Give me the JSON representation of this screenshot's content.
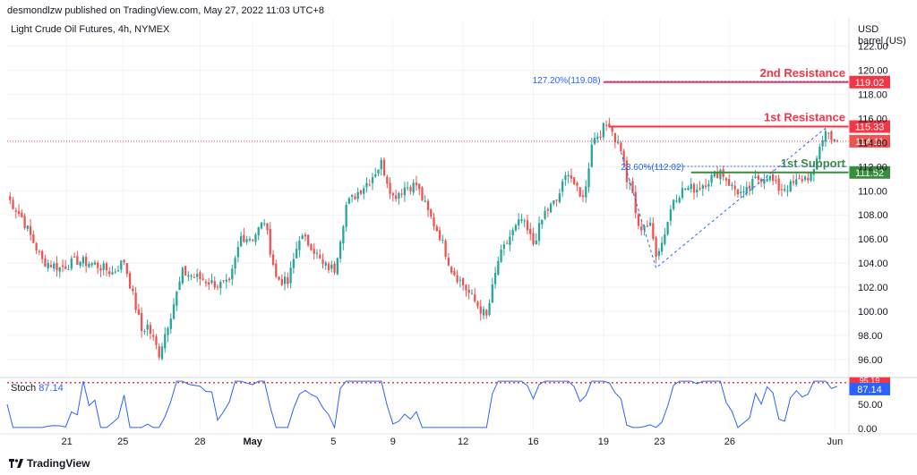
{
  "header": {
    "published": "desmondlzw published on TradingView.com, May 27, 2022 11:03 UTC+8",
    "symbol": "Light Crude Oil Futures, 4h, NYMEX",
    "currency": "USD",
    "unit": "barrel (US)"
  },
  "footer": {
    "brand": "TradingView"
  },
  "colors": {
    "up": "#26a69a",
    "down": "#ef5350",
    "resistance": "#f23645",
    "support": "#388e3c",
    "stoch": "#2962ff",
    "fib": "#2962ff"
  },
  "chart_data": [
    {
      "type": "candlestick",
      "title": "Light Crude Oil Futures, 4h, NYMEX",
      "ylabel": "USD barrel (US)",
      "ylim": [
        94.8,
        124.2
      ],
      "y_ticks": [
        "96.00",
        "98.00",
        "100.00",
        "102.00",
        "104.00",
        "106.00",
        "108.00",
        "110.00",
        "112.00",
        "114.00",
        "116.00",
        "118.00",
        "120.00",
        "122.00"
      ],
      "x_tick_labels": [
        "21",
        "25",
        "28",
        "May",
        "5",
        "9",
        "12",
        "16",
        "19",
        "23",
        "26",
        "Jun"
      ],
      "anchor_closes": [
        [
          0,
          109.5
        ],
        [
          5,
          107.8
        ],
        [
          12,
          104.2
        ],
        [
          18,
          103.6
        ],
        [
          24,
          104.2
        ],
        [
          30,
          103.9
        ],
        [
          36,
          103.2
        ],
        [
          40,
          104.2
        ],
        [
          46,
          98.4
        ],
        [
          48,
          98.8
        ],
        [
          52,
          96.5
        ],
        [
          56,
          99.8
        ],
        [
          60,
          103.2
        ],
        [
          65,
          102.8
        ],
        [
          72,
          102.2
        ],
        [
          76,
          102.2
        ],
        [
          80,
          106.2
        ],
        [
          84,
          106.1
        ],
        [
          88,
          107.5
        ],
        [
          92,
          102.8
        ],
        [
          96,
          102.3
        ],
        [
          100,
          106.2
        ],
        [
          104,
          105.5
        ],
        [
          108,
          103.8
        ],
        [
          112,
          103.5
        ],
        [
          116,
          108.8
        ],
        [
          120,
          109.9
        ],
        [
          124,
          110.9
        ],
        [
          128,
          112.3
        ],
        [
          132,
          109.5
        ],
        [
          136,
          110.3
        ],
        [
          140,
          110.5
        ],
        [
          144,
          108.2
        ],
        [
          148,
          106.3
        ],
        [
          152,
          103.5
        ],
        [
          156,
          102.2
        ],
        [
          160,
          100.8
        ],
        [
          164,
          99.5
        ],
        [
          168,
          104.2
        ],
        [
          172,
          106.2
        ],
        [
          176,
          107.6
        ],
        [
          180,
          105.6
        ],
        [
          184,
          108.2
        ],
        [
          188,
          109.2
        ],
        [
          192,
          111.7
        ],
        [
          196,
          109.4
        ],
        [
          198,
          110.2
        ],
        [
          200,
          114.1
        ],
        [
          204,
          115.2
        ],
        [
          206,
          115.7
        ],
        [
          208,
          114.3
        ],
        [
          210,
          113.5
        ],
        [
          212,
          110.9
        ],
        [
          214,
          109.7
        ],
        [
          216,
          106.8
        ],
        [
          218,
          107.2
        ],
        [
          220,
          107.0
        ],
        [
          222,
          104.9
        ],
        [
          224,
          105.7
        ],
        [
          226,
          107.5
        ],
        [
          228,
          109.4
        ],
        [
          232,
          110.2
        ],
        [
          236,
          110.2
        ],
        [
          240,
          110.9
        ],
        [
          244,
          111.7
        ],
        [
          248,
          110.3
        ],
        [
          252,
          109.6
        ],
        [
          256,
          110.9
        ],
        [
          260,
          111.3
        ],
        [
          264,
          110.2
        ],
        [
          268,
          110.4
        ],
        [
          272,
          111.0
        ],
        [
          276,
          111.4
        ],
        [
          278,
          113.8
        ],
        [
          280,
          114.9
        ],
        [
          284,
          114.2
        ]
      ],
      "levels": [
        {
          "name": "2nd Resistance",
          "value": 119.02,
          "label": "119.02"
        },
        {
          "name": "1st Resistance",
          "value": 115.33,
          "label": "115.33"
        },
        {
          "name": "1st Support",
          "value": 111.52,
          "label": "111.52"
        }
      ],
      "last_price": {
        "value": 114.11,
        "label": "114.11"
      },
      "fibonacci": [
        {
          "text": "127.20%(119.08)",
          "value": 119.08
        },
        {
          "text": "23.60%(112.02)",
          "value": 112.02
        }
      ]
    },
    {
      "type": "line",
      "title": "Stoch",
      "series": [
        {
          "name": "Stoch",
          "last_value": 87.14,
          "last_label": "87.14"
        }
      ],
      "ylim": [
        0,
        100
      ],
      "y_ticks": [
        "0.00",
        "50.00"
      ],
      "level_line": {
        "value": 95,
        "label": "95.19"
      }
    }
  ]
}
